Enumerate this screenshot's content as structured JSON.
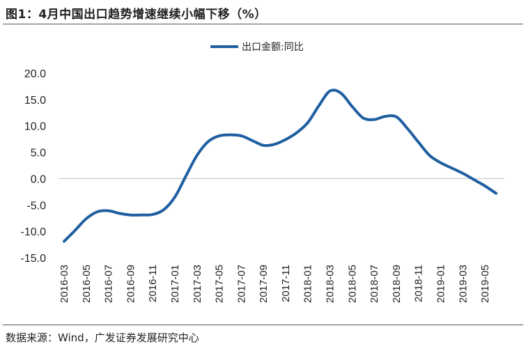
{
  "figure": {
    "title": "图1：4月中国出口趋势增速继续小幅下移（%）",
    "source": "数据来源：Wind，广发证券发展研究中心"
  },
  "colors": {
    "series": "#1f5fa0",
    "zero_line": "#bfbfbf",
    "text": "#222222"
  },
  "chart_data": {
    "type": "line",
    "title": "",
    "xlabel": "",
    "ylabel": "",
    "ylim": [
      -15,
      20
    ],
    "yticks": [
      20,
      15,
      10,
      5,
      0,
      -5,
      -10,
      -15
    ],
    "ytick_labels": [
      "20.0",
      "15.0",
      "10.0",
      "5.0",
      "0.0",
      "-5.0",
      "-10.0",
      "-15.0"
    ],
    "x_tick_labels": [
      "2016-03",
      "2016-05",
      "2016-07",
      "2016-09",
      "2016-11",
      "2017-01",
      "2017-03",
      "2017-05",
      "2017-07",
      "2017-09",
      "2017-11",
      "2018-01",
      "2018-03",
      "2018-05",
      "2018-07",
      "2018-09",
      "2018-11",
      "2019-01",
      "2019-03",
      "2019-05"
    ],
    "grid": false,
    "legend": "top-center",
    "series": [
      {
        "name": "出口金额:同比",
        "x": [
          "2016-03",
          "2016-04",
          "2016-05",
          "2016-06",
          "2016-07",
          "2016-08",
          "2016-09",
          "2016-10",
          "2016-11",
          "2016-12",
          "2017-01",
          "2017-02",
          "2017-03",
          "2017-04",
          "2017-05",
          "2017-06",
          "2017-07",
          "2017-08",
          "2017-09",
          "2017-10",
          "2017-11",
          "2017-12",
          "2018-01",
          "2018-02",
          "2018-03",
          "2018-04",
          "2018-05",
          "2018-06",
          "2018-07",
          "2018-08",
          "2018-09",
          "2018-10",
          "2018-11",
          "2018-12",
          "2019-01",
          "2019-02",
          "2019-03",
          "2019-04",
          "2019-05",
          "2019-06"
        ],
        "values": [
          -11.9,
          -9.8,
          -7.6,
          -6.3,
          -6.1,
          -6.6,
          -6.9,
          -6.9,
          -6.8,
          -5.9,
          -3.5,
          0.5,
          4.4,
          7.0,
          8.1,
          8.3,
          8.1,
          7.2,
          6.3,
          6.5,
          7.4,
          8.7,
          10.6,
          13.8,
          16.6,
          16.2,
          13.7,
          11.5,
          11.2,
          11.8,
          11.7,
          9.5,
          6.9,
          4.4,
          3.0,
          2.0,
          1.0,
          -0.2,
          -1.4,
          -2.8
        ]
      }
    ]
  }
}
